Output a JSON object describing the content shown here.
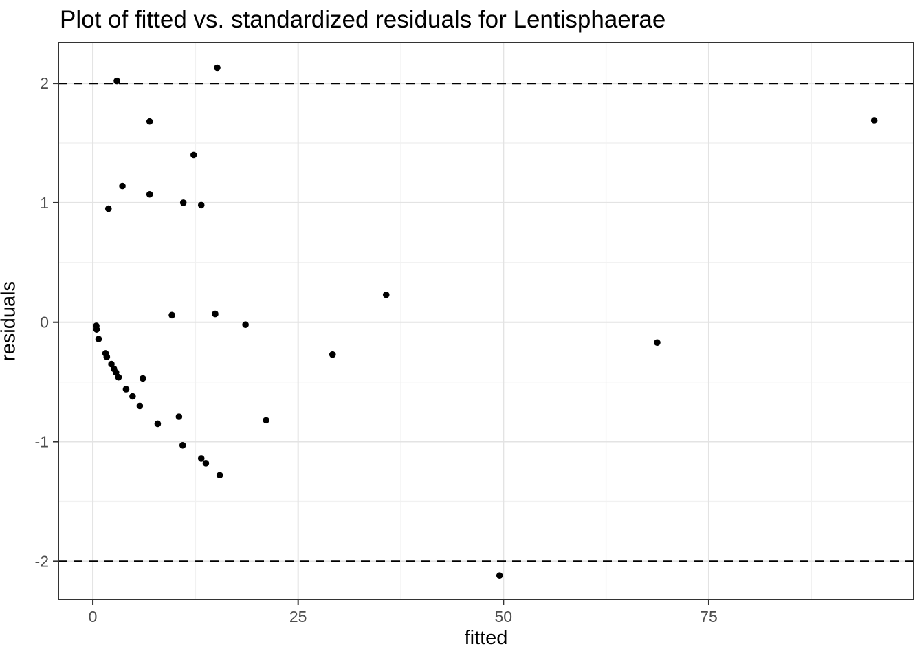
{
  "chart_data": {
    "type": "scatter",
    "title": "Plot of fitted vs. standardized residuals for Lentisphaerae",
    "xlabel": "fitted",
    "ylabel": "residuals",
    "x_ticks": [
      0,
      25,
      50,
      75
    ],
    "x_minor_ticks": [
      12.5,
      37.5,
      62.5,
      87.5
    ],
    "y_ticks": [
      -2,
      -1,
      0,
      1,
      2
    ],
    "y_minor_ticks": [
      -1.5,
      -0.5,
      0.5,
      1.5
    ],
    "xlim": [
      -4.19,
      99.95
    ],
    "ylim": [
      -2.32,
      2.34
    ],
    "grid": "major-and-minor",
    "legend_position": "none",
    "hlines": [
      {
        "y": 2,
        "style": "dashed"
      },
      {
        "y": -2,
        "style": "dashed"
      }
    ],
    "points": [
      [
        0.42,
        -0.03
      ],
      [
        0.46,
        -0.06
      ],
      [
        0.71,
        -0.14
      ],
      [
        1.55,
        -0.26
      ],
      [
        1.7,
        -0.29
      ],
      [
        1.9,
        0.95
      ],
      [
        2.26,
        -0.35
      ],
      [
        2.57,
        -0.39
      ],
      [
        2.82,
        -0.42
      ],
      [
        2.93,
        2.02
      ],
      [
        3.13,
        -0.46
      ],
      [
        3.6,
        1.14
      ],
      [
        4.05,
        -0.56
      ],
      [
        4.84,
        -0.62
      ],
      [
        5.72,
        -0.7
      ],
      [
        6.09,
        -0.47
      ],
      [
        6.92,
        1.68
      ],
      [
        6.92,
        1.07
      ],
      [
        7.9,
        -0.85
      ],
      [
        9.63,
        0.06
      ],
      [
        10.49,
        -0.79
      ],
      [
        10.94,
        -1.03
      ],
      [
        11.02,
        1.0
      ],
      [
        12.28,
        1.4
      ],
      [
        13.2,
        0.98
      ],
      [
        13.2,
        -1.14
      ],
      [
        13.76,
        -1.18
      ],
      [
        14.9,
        0.07
      ],
      [
        15.15,
        2.13
      ],
      [
        15.46,
        -1.28
      ],
      [
        18.59,
        -0.02
      ],
      [
        21.1,
        -0.82
      ],
      [
        29.19,
        -0.27
      ],
      [
        35.72,
        0.23
      ],
      [
        49.53,
        -2.12
      ],
      [
        68.72,
        -0.17
      ],
      [
        95.15,
        1.69
      ]
    ]
  },
  "style": {
    "background_color": "#ffffff",
    "panel_background": "#ffffff",
    "panel_border_color": "#333333",
    "grid_major_color": "#e3e3e3",
    "grid_minor_color": "#f1f1f1",
    "tick_mark_color": "#333333",
    "tick_label_color": "#4d4d4d",
    "point_color": "#000000",
    "dashed_line_color": "#000000"
  }
}
